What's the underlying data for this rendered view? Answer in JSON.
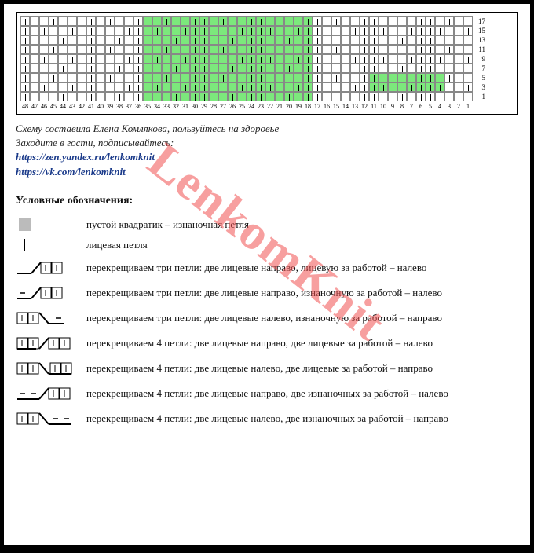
{
  "chart": {
    "cols": 48,
    "rows": 9,
    "row_labels": [
      "17",
      "15",
      "13",
      "11",
      "9",
      "7",
      "5",
      "3",
      "1"
    ],
    "col_labels_reverse": [
      "48",
      "47",
      "46",
      "45",
      "44",
      "43",
      "42",
      "41",
      "40",
      "39",
      "38",
      "37",
      "36",
      "35",
      "34",
      "33",
      "32",
      "31",
      "30",
      "29",
      "28",
      "27",
      "26",
      "25",
      "24",
      "23",
      "22",
      "21",
      "20",
      "19",
      "18",
      "17",
      "16",
      "15",
      "14",
      "13",
      "12",
      "11",
      "10",
      "9",
      "8",
      "7",
      "6",
      "5",
      "4",
      "3",
      "2",
      "1"
    ],
    "green_region": {
      "col_start": 18,
      "col_end": 35
    },
    "extra_green": [
      {
        "row": 6,
        "cols": [
          4,
          5,
          6,
          7,
          8,
          9,
          10,
          11
        ]
      },
      {
        "row": 7,
        "cols": [
          4,
          5,
          6,
          7,
          8,
          9,
          10,
          11
        ]
      }
    ],
    "cell_border": "#888888",
    "green_color": "#7ce87c",
    "background": "#ffffff"
  },
  "credits": {
    "line1": "Схему составила Елена Комлякова, пользуйтесь на здоровье",
    "line2": "Заходите в гости, подписывайтесь:",
    "link1": "https://zen.yandex.ru/lenkomknit",
    "link2": "https://vk.com/lenkomknit",
    "text_color": "#1a3a8a"
  },
  "legend": {
    "title": "Условные обозначения:",
    "items": [
      {
        "sym": "square",
        "text": "пустой квадратик – изнаночная петля"
      },
      {
        "sym": "knit",
        "text": "лицевая петля"
      },
      {
        "sym": "c3r",
        "text": "перекрещиваем три петли: две лицевые направо, лицевую за работой – налево"
      },
      {
        "sym": "c3rp",
        "text": "перекрещиваем три петли: две лицевые направо, изнаночную за работой – налево"
      },
      {
        "sym": "c3l",
        "text": "перекрещиваем три петли: две лицевые налево, изнаночную за работой – направо"
      },
      {
        "sym": "c4r",
        "text": "перекрещиваем 4  петли: две лицевые направо, две лицевые за работой – налево"
      },
      {
        "sym": "c4l",
        "text": "перекрещиваем 4 петли: две лицевые налево, две лицевые  за работой – направо"
      },
      {
        "sym": "c4rp",
        "text": "перекрещиваем 4 петли: две лицевые направо, две изнаночных за работой – налево"
      },
      {
        "sym": "c4lp",
        "text": "перекрещиваем 4 петли: две лицевые налево, две изнаночных за работой – направо"
      }
    ]
  },
  "watermark": {
    "text": "LenkomKnit",
    "color": "rgba(240,80,80,0.55)",
    "fontsize": 64,
    "angle": 38
  }
}
